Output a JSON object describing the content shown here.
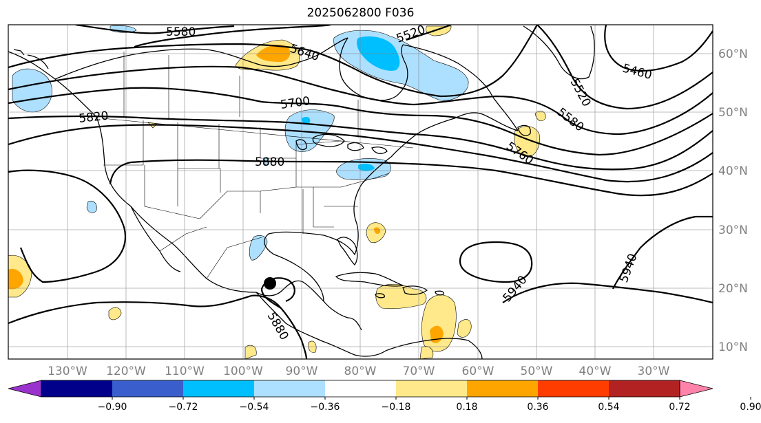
{
  "title": "2025062800 F036",
  "lon_labels": [
    "130°W",
    "120°W",
    "110°W",
    "100°W",
    "90°W",
    "80°W",
    "70°W",
    "60°W",
    "50°W",
    "40°W",
    "30°W"
  ],
  "lat_labels": [
    "60°N",
    "50°N",
    "40°N",
    "30°N",
    "20°N",
    "10°N"
  ],
  "contour_labels": [
    "5580",
    "5640",
    "5520",
    "5460",
    "5520",
    "5580",
    "5700",
    "5760",
    "5820",
    "5880",
    "5880",
    "5940",
    "5940"
  ],
  "colorbar": {
    "ticks": [
      "−0.90",
      "−0.72",
      "−0.54",
      "−0.36",
      "−0.18",
      "0.18",
      "0.36",
      "0.54",
      "0.72",
      "0.90"
    ],
    "colors": [
      "#9932CC",
      "#00008B",
      "#3A5FCD",
      "#00BFFF",
      "#ADDFFF",
      "#FFFFFF",
      "#FFE98A",
      "#FFA500",
      "#FF3D00",
      "#B22222",
      "#FF82AB"
    ],
    "under_color": "#9932CC",
    "over_color": "#FF82AB"
  },
  "features": {
    "storm_marker": "black filled circle near Bay of Campeche"
  }
}
